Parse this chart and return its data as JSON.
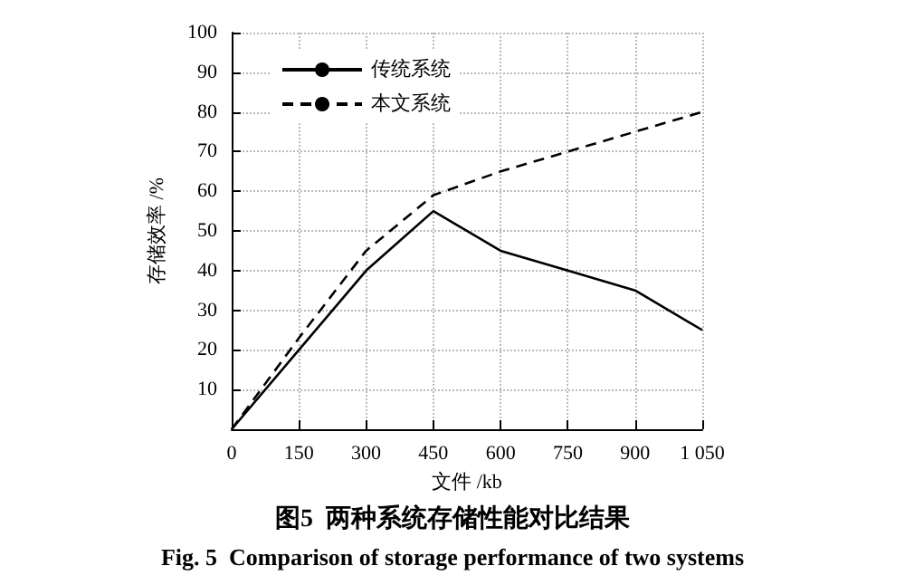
{
  "chart_data": {
    "type": "line",
    "title": "图5  两种系统存储性能对比结果",
    "subtitle": "Fig. 5  Comparison of storage performance of two systems",
    "xlabel": "文件 /kb",
    "ylabel": "存储效率 /%",
    "x": [
      0,
      150,
      300,
      450,
      600,
      750,
      900,
      1050
    ],
    "series": [
      {
        "name": "传统系统",
        "color": "#000000",
        "line_style": "solid",
        "values": [
          0,
          20,
          40,
          55,
          45,
          40,
          35,
          25
        ]
      },
      {
        "name": "本文系统",
        "color": "#000000",
        "line_style": "dashed",
        "values": [
          0,
          23,
          45,
          59,
          65,
          70,
          75,
          80
        ]
      }
    ],
    "xlim": [
      0,
      1050
    ],
    "xticks": [
      0,
      150,
      300,
      450,
      600,
      750,
      900,
      {
        "value": 1050,
        "label": "1 050"
      }
    ],
    "ylim": [
      0,
      100
    ],
    "yticks": [
      {
        "value": 0,
        "label": null
      },
      10,
      20,
      30,
      40,
      50,
      60,
      70,
      80,
      90,
      100
    ],
    "grid": true,
    "legend": "top left",
    "marker": "none"
  }
}
